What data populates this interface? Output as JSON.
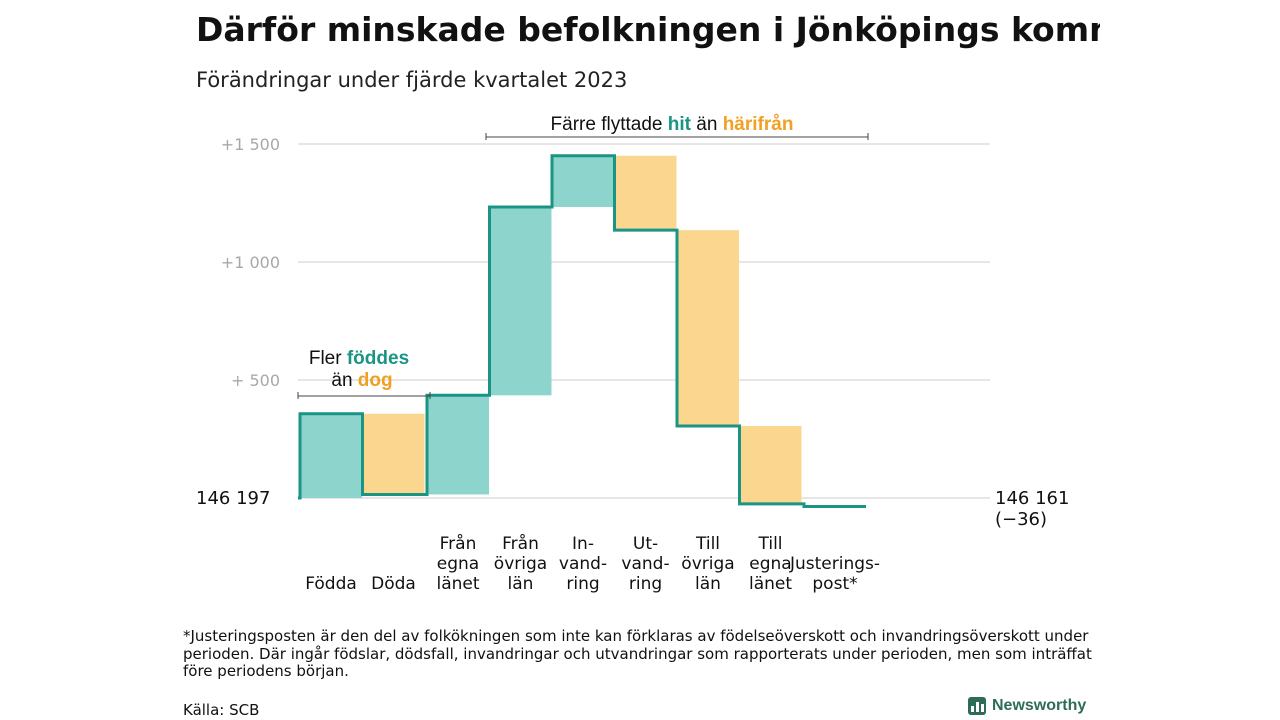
{
  "header": {
    "title": "Därför minskade befolkningen i Jönköpings kommun",
    "subtitle": "Förändringar under fjärde kvartalet 2023"
  },
  "chart_data": {
    "type": "bar",
    "subtype": "waterfall",
    "start_value": 146197,
    "start_label": "146 197",
    "end_label": "146 161",
    "end_change_label": "(−36)",
    "ylim": [
      -20,
      1550
    ],
    "yticks": [
      {
        "value": 500,
        "label": "+ 500"
      },
      {
        "value": 1000,
        "label": "+1 000"
      },
      {
        "value": 1500,
        "label": "+1 500"
      }
    ],
    "grid": true,
    "steps": [
      {
        "label": [
          "Födda"
        ],
        "from": 0,
        "to": 357,
        "kind": "in"
      },
      {
        "label": [
          "Döda"
        ],
        "from": 357,
        "to": 15,
        "kind": "out"
      },
      {
        "label": [
          "Från",
          "egna",
          "länet"
        ],
        "from": 15,
        "to": 435,
        "kind": "in"
      },
      {
        "label": [
          "Från",
          "övriga",
          "län"
        ],
        "from": 435,
        "to": 1233,
        "kind": "in"
      },
      {
        "label": [
          "In-",
          "vand-",
          "ring"
        ],
        "from": 1233,
        "to": 1450,
        "kind": "in"
      },
      {
        "label": [
          "Ut-",
          "vand-",
          "ring"
        ],
        "from": 1450,
        "to": 1135,
        "kind": "out"
      },
      {
        "label": [
          "Till",
          "övriga",
          "län"
        ],
        "from": 1135,
        "to": 305,
        "kind": "out"
      },
      {
        "label": [
          "Till",
          "egna",
          "länet"
        ],
        "from": 305,
        "to": -25,
        "kind": "out"
      },
      {
        "label": [
          "Justerings-",
          "post*"
        ],
        "from": -25,
        "to": -36,
        "kind": "adjust"
      }
    ],
    "colors": {
      "in": "#8dd5cc",
      "out": "#fbd68e",
      "line": "#1a9484",
      "in_text": "#1a9484",
      "out_text": "#f0a023",
      "grid": "#dddddd",
      "tick": "#a8a8a8"
    },
    "annotations": {
      "natural": {
        "line1_a": "Fler ",
        "line1_b": "föddes",
        "line2_a": "än ",
        "line2_b": "dog"
      },
      "migration": {
        "a": "Färre flyttade ",
        "b": "hit",
        "c": " än ",
        "d": "härifrån"
      }
    }
  },
  "footer": {
    "footnote": "*Justeringsposten är den del av folkökningen som inte kan förklaras av födelseöverskott och invandringsöverskott under perioden. Där ingår födslar, dödsfall, invandringar och utvandringar som rapporterats under perioden, men som inträffat före periodens början.",
    "source": "Källa: SCB",
    "brand": "Newsworthy"
  }
}
